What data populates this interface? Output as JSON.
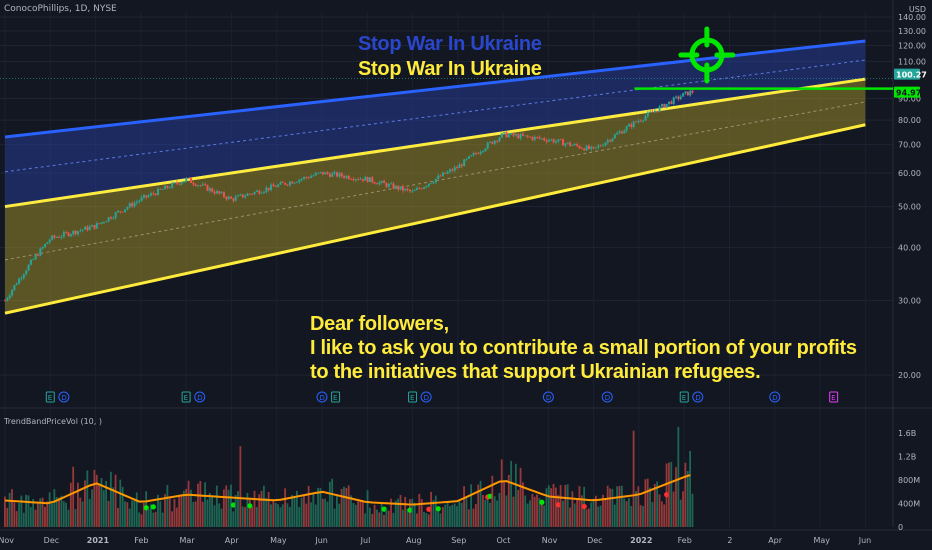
{
  "header": {
    "symbol": "ConocoPhillips, 1D, NYSE",
    "currency": "USD"
  },
  "headline": {
    "blue": "Stop War In Ukraine",
    "yellow": "Stop War In Ukraine"
  },
  "message": [
    "Dear followers,",
    "I like to ask you to contribute a small portion of your profits",
    "to the initiatives that support Ukrainian refugees."
  ],
  "indicator": {
    "label": "TrendBandPriceVol (10, )"
  },
  "colors": {
    "background": "#131722",
    "blue_channel": "#2962ff",
    "yellow_channel": "#ffeb3b",
    "green_line": "#00e600",
    "price_up": "#26a69a",
    "price_down": "#ef5350"
  },
  "icons": [
    "crosshair-target-icon"
  ],
  "chart_data": [
    {
      "type": "candlestick",
      "title": "ConocoPhillips, 1D, NYSE",
      "x_ticks": [
        "Nov",
        "Dec",
        "2021",
        "Feb",
        "Mar",
        "Apr",
        "May",
        "Jun",
        "Jul",
        "Aug",
        "Sep",
        "Oct",
        "Nov",
        "Dec",
        "2022",
        "Feb",
        "2",
        "Apr",
        "May",
        "Jun"
      ],
      "y_ticks": [
        20,
        30,
        40,
        50,
        60,
        70,
        80,
        90,
        110,
        120,
        130,
        140
      ],
      "y_scale": "log",
      "ylim": [
        17,
        144
      ],
      "price_markers": [
        {
          "value": 100.27,
          "label": "100.27",
          "color": "#26a69a"
        },
        {
          "value": 94.97,
          "label": "94.97",
          "color": "#00e600"
        }
      ],
      "channels": [
        {
          "name": "",
          "color": "#2962ff",
          "upper": [
            {
              "x": "2020-11",
              "y": 73
            },
            {
              "x": "2022-06",
              "y": 123
            }
          ],
          "lower": [
            {
              "x": "2020-11",
              "y": 50
            },
            {
              "x": "2022-06",
              "y": 100
            }
          ]
        },
        {
          "name": "",
          "color": "#ffeb3b",
          "upper": [
            {
              "x": "2020-11",
              "y": 50
            },
            {
              "x": "2022-06",
              "y": 100
            }
          ],
          "lower": [
            {
              "x": "2020-11",
              "y": 28
            },
            {
              "x": "2022-06",
              "y": 78
            }
          ]
        }
      ],
      "horizontal_line": {
        "value": 94.97,
        "color": "#00e600"
      },
      "series": [
        {
          "name": "",
          "x": [
            "2020-11",
            "2020-12",
            "2021-01",
            "2021-02",
            "2021-03",
            "2021-04",
            "2021-05",
            "2021-06",
            "2021-07",
            "2021-08",
            "2021-09",
            "2021-10",
            "2021-11",
            "2021-12",
            "2022-01",
            "2022-02",
            "2022-03"
          ],
          "values": [
            30,
            42,
            45,
            52,
            58,
            52,
            56,
            60,
            58,
            54,
            62,
            74,
            72,
            68,
            80,
            92,
            100
          ]
        }
      ],
      "events": [
        {
          "x": "2020-12",
          "label": "E"
        },
        {
          "x": "2020-12",
          "label": "D"
        },
        {
          "x": "2021-03",
          "label": "E"
        },
        {
          "x": "2021-03",
          "label": "D"
        },
        {
          "x": "2021-06",
          "label": "D"
        },
        {
          "x": "2021-06",
          "label": "E"
        },
        {
          "x": "2021-08",
          "label": "E"
        },
        {
          "x": "2021-08",
          "label": "D"
        },
        {
          "x": "2021-11",
          "label": "D"
        },
        {
          "x": "2021-12",
          "label": "D"
        },
        {
          "x": "2022-02",
          "label": "E"
        },
        {
          "x": "2022-02",
          "label": "D"
        },
        {
          "x": "2022-04",
          "label": "D"
        },
        {
          "x": "2022-05",
          "label": "E"
        }
      ]
    },
    {
      "type": "bar",
      "title": "TrendBandPriceVol (10, )",
      "y_ticks": [
        "0",
        "400M",
        "800M",
        "1.2B",
        "1.6B"
      ],
      "ylim": [
        0,
        1.75
      ],
      "unit": "B",
      "series": [
        {
          "name": "",
          "categories": [
            "2020-11",
            "2020-12",
            "2021-01",
            "2021-02",
            "2021-03",
            "2021-04",
            "2021-05",
            "2021-06",
            "2021-07",
            "2021-08",
            "2021-09",
            "2021-10",
            "2021-11",
            "2021-12",
            "2022-01",
            "2022-02",
            "2022-03"
          ],
          "values": [
            0.45,
            0.4,
            0.75,
            0.42,
            0.55,
            0.5,
            0.45,
            0.6,
            0.42,
            0.38,
            0.44,
            0.8,
            0.52,
            0.45,
            0.55,
            0.85,
            1.1
          ]
        }
      ]
    }
  ]
}
